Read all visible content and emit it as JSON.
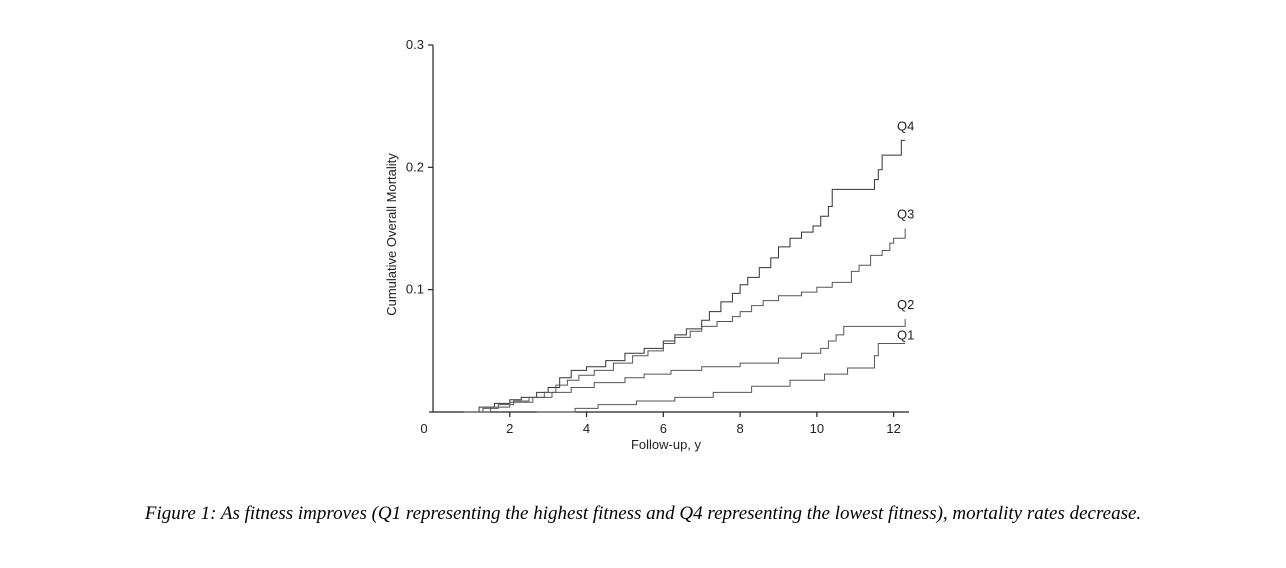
{
  "chart_data": {
    "type": "line",
    "step": true,
    "title": "",
    "xlabel": "Follow-up, y",
    "ylabel": "Cumulative Overall Mortality",
    "xlim": [
      0,
      12.4
    ],
    "ylim": [
      0,
      0.3
    ],
    "xticks": [
      0,
      2,
      4,
      6,
      8,
      10,
      12
    ],
    "xtick_labels": [
      "0",
      "2",
      "4",
      "6",
      "8",
      "10",
      "12"
    ],
    "yticks": [
      0.1,
      0.2,
      0.3
    ],
    "ytick_labels": [
      "0.1",
      "0.2",
      "0.3"
    ],
    "grid": false,
    "legend": "direct labels at right end of each curve",
    "series": [
      {
        "name": "Q4",
        "x": [
          0.9,
          1.2,
          1.6,
          2.0,
          2.3,
          2.7,
          3.0,
          3.3,
          3.6,
          4.0,
          4.5,
          5.0,
          5.5,
          6.0,
          6.3,
          6.6,
          7.0,
          7.2,
          7.5,
          7.8,
          8.0,
          8.2,
          8.5,
          8.8,
          9.0,
          9.3,
          9.6,
          9.9,
          10.1,
          10.3,
          10.4,
          11.5,
          11.6,
          11.7,
          12.2,
          12.3
        ],
        "y": [
          0.0,
          0.004,
          0.007,
          0.01,
          0.012,
          0.016,
          0.02,
          0.028,
          0.034,
          0.037,
          0.042,
          0.048,
          0.052,
          0.058,
          0.063,
          0.068,
          0.075,
          0.082,
          0.09,
          0.097,
          0.104,
          0.11,
          0.118,
          0.126,
          0.135,
          0.142,
          0.147,
          0.152,
          0.16,
          0.168,
          0.182,
          0.19,
          0.198,
          0.21,
          0.222,
          0.222
        ]
      },
      {
        "name": "Q3",
        "x": [
          0.9,
          1.3,
          1.7,
          2.1,
          2.5,
          2.9,
          3.2,
          3.5,
          3.8,
          4.2,
          4.7,
          5.2,
          5.6,
          6.0,
          6.3,
          6.7,
          7.0,
          7.4,
          7.8,
          8.0,
          8.3,
          8.6,
          9.0,
          9.6,
          10.0,
          10.4,
          10.9,
          11.1,
          11.4,
          11.7,
          11.9,
          12.0,
          12.3
        ],
        "y": [
          0.0,
          0.003,
          0.006,
          0.009,
          0.012,
          0.016,
          0.022,
          0.026,
          0.03,
          0.034,
          0.04,
          0.046,
          0.05,
          0.056,
          0.061,
          0.066,
          0.07,
          0.074,
          0.078,
          0.082,
          0.087,
          0.091,
          0.095,
          0.098,
          0.102,
          0.106,
          0.115,
          0.12,
          0.128,
          0.132,
          0.138,
          0.142,
          0.15
        ]
      },
      {
        "name": "Q2",
        "x": [
          0.8,
          1.5,
          2.0,
          2.6,
          3.1,
          3.6,
          4.2,
          5.0,
          5.5,
          6.2,
          7.0,
          8.0,
          9.0,
          9.6,
          10.1,
          10.3,
          10.5,
          10.7,
          12.3
        ],
        "y": [
          0.0,
          0.004,
          0.008,
          0.012,
          0.016,
          0.02,
          0.024,
          0.028,
          0.031,
          0.034,
          0.037,
          0.04,
          0.044,
          0.048,
          0.052,
          0.058,
          0.063,
          0.07,
          0.076
        ]
      },
      {
        "name": "Q1",
        "x": [
          2.7,
          3.7,
          4.3,
          5.3,
          6.3,
          7.3,
          8.3,
          9.3,
          10.2,
          10.8,
          11.5,
          11.6,
          12.3
        ],
        "y": [
          0.0,
          0.003,
          0.006,
          0.009,
          0.012,
          0.016,
          0.021,
          0.026,
          0.031,
          0.036,
          0.046,
          0.056,
          0.056
        ]
      }
    ]
  },
  "caption": "Figure 1: As fitness improves (Q1 representing the highest fitness and Q4 representing the lowest fitness), mortality rates decrease."
}
